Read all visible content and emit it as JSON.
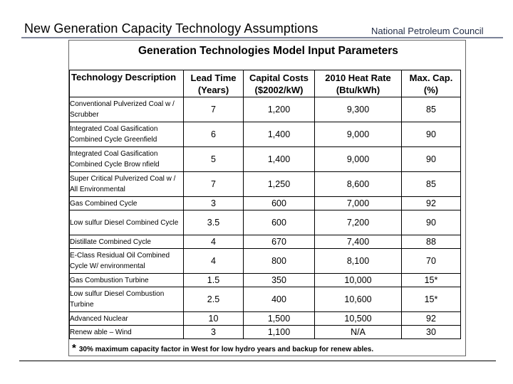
{
  "slide": {
    "title": "New Generation Capacity Technology Assumptions",
    "organization": "National Petroleum Council"
  },
  "panel": {
    "title": "Generation Technologies Model Input Parameters"
  },
  "table": {
    "headers": [
      "Technology Description",
      "Lead Time (Years)",
      "Capital Costs ($2002/kW)",
      "2010 Heat Rate (Btu/kWh)",
      "Max. Cap. (%)"
    ],
    "rows": [
      {
        "description": "Conventional Pulverized Coal w / Scrubber",
        "lead_time": "7",
        "capital_cost": "1,200",
        "heat_rate": "9,300",
        "max_cap": "85"
      },
      {
        "description": "Integrated Coal Gasification Combined Cycle Greenfield",
        "lead_time": "6",
        "capital_cost": "1,400",
        "heat_rate": "9,000",
        "max_cap": "90"
      },
      {
        "description": "Integrated Coal Gasification Combined Cycle Brow nfield",
        "lead_time": "5",
        "capital_cost": "1,400",
        "heat_rate": "9,000",
        "max_cap": "90"
      },
      {
        "description": "Super Critical Pulverized Coal w / All Environmental",
        "lead_time": "7",
        "capital_cost": "1,250",
        "heat_rate": "8,600",
        "max_cap": "85"
      },
      {
        "description": "Gas Combined Cycle",
        "lead_time": "3",
        "capital_cost": "600",
        "heat_rate": "7,000",
        "max_cap": "92"
      },
      {
        "description": "Low sulfur Diesel Combined Cycle",
        "lead_time": "3.5",
        "capital_cost": "600",
        "heat_rate": "7,200",
        "max_cap": "90"
      },
      {
        "description": "Distillate Combined Cycle",
        "lead_time": "4",
        "capital_cost": "670",
        "heat_rate": "7,400",
        "max_cap": "88"
      },
      {
        "description": "E-Class Residual Oil Combined Cycle W/ environmental",
        "lead_time": "4",
        "capital_cost": "800",
        "heat_rate": "8,100",
        "max_cap": "70"
      },
      {
        "description": "Gas Combustion Turbine",
        "lead_time": "1.5",
        "capital_cost": "350",
        "heat_rate": "10,000",
        "max_cap": "15*"
      },
      {
        "description": "Low sulfur Diesel Combustion Turbine",
        "lead_time": "2.5",
        "capital_cost": "400",
        "heat_rate": "10,600",
        "max_cap": "15*"
      },
      {
        "description": "Advanced Nuclear",
        "lead_time": "10",
        "capital_cost": "1,500",
        "heat_rate": "10,500",
        "max_cap": "92"
      },
      {
        "description": "Renew able – Wind",
        "lead_time": "3",
        "capital_cost": "1,100",
        "heat_rate": "N/A",
        "max_cap": "30"
      }
    ]
  },
  "footnote": {
    "marker": "*",
    "text": "30% maximum capacity factor in West for low hydro years and backup for renew ables."
  }
}
